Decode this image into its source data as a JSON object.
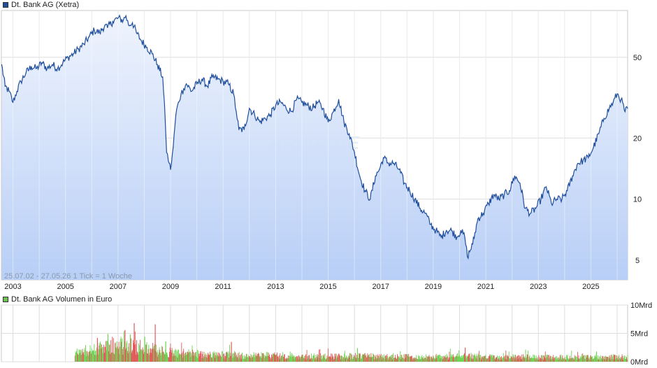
{
  "chart_data": [
    {
      "type": "line",
      "legend": "Dt. Bank AG (Xetra)",
      "yscale": "log",
      "ylim": [
        4,
        85
      ],
      "yticks": [
        {
          "value": 5,
          "label": "5"
        },
        {
          "value": 10,
          "label": "10"
        },
        {
          "value": 20,
          "label": "20"
        },
        {
          "value": 50,
          "label": "50"
        }
      ],
      "xlim": [
        2002.56,
        2026.4
      ],
      "xticks": [
        "2003",
        "2005",
        "2007",
        "2009",
        "2011",
        "2013",
        "2015",
        "2017",
        "2019",
        "2021",
        "2023",
        "2025"
      ],
      "caption": "25.07.02 - 27.05.26    1 Tick = 1 Woche",
      "watermark": "ARIVA.DE",
      "grid": true,
      "line_color": "#1f4e9c",
      "fill_top_color": "#eef3fd",
      "fill_bottom_color": "#b4ccf6",
      "series": [
        {
          "name": "Dt. Bank AG (Xetra)",
          "x": [
            2002.57,
            2002.7,
            2002.85,
            2003.0,
            2003.15,
            2003.3,
            2003.5,
            2003.7,
            2003.9,
            2004.1,
            2004.3,
            2004.5,
            2004.7,
            2004.9,
            2005.1,
            2005.3,
            2005.5,
            2005.7,
            2005.9,
            2006.1,
            2006.3,
            2006.5,
            2006.6,
            2006.8,
            2007.0,
            2007.2,
            2007.3,
            2007.4,
            2007.55,
            2007.7,
            2007.9,
            2008.1,
            2008.3,
            2008.5,
            2008.7,
            2008.8,
            2008.85,
            2008.95,
            2009.0,
            2009.1,
            2009.2,
            2009.3,
            2009.4,
            2009.5,
            2009.6,
            2009.8,
            2010.0,
            2010.2,
            2010.4,
            2010.6,
            2010.8,
            2011.0,
            2011.2,
            2011.4,
            2011.5,
            2011.6,
            2011.8,
            2012.0,
            2012.2,
            2012.4,
            2012.6,
            2012.8,
            2013.0,
            2013.2,
            2013.4,
            2013.6,
            2013.8,
            2014.0,
            2014.2,
            2014.4,
            2014.6,
            2014.8,
            2015.0,
            2015.2,
            2015.4,
            2015.6,
            2015.8,
            2016.0,
            2016.2,
            2016.4,
            2016.6,
            2016.8,
            2016.95,
            2017.1,
            2017.3,
            2017.5,
            2017.7,
            2017.9,
            2018.1,
            2018.3,
            2018.5,
            2018.7,
            2018.9,
            2019.1,
            2019.3,
            2019.5,
            2019.7,
            2019.9,
            2020.05,
            2020.2,
            2020.3,
            2020.5,
            2020.7,
            2020.9,
            2021.1,
            2021.3,
            2021.5,
            2021.7,
            2021.9,
            2022.1,
            2022.3,
            2022.5,
            2022.7,
            2022.9,
            2023.1,
            2023.3,
            2023.5,
            2023.7,
            2023.9,
            2024.1,
            2024.3,
            2024.5,
            2024.7,
            2024.9,
            2025.1,
            2025.3,
            2025.5,
            2025.7,
            2025.85,
            2026.0,
            2026.15,
            2026.3,
            2026.4
          ],
          "y": [
            46,
            36,
            34,
            30,
            34,
            38,
            42,
            45,
            44,
            47,
            44,
            46,
            44,
            47,
            50,
            52,
            55,
            58,
            63,
            68,
            66,
            72,
            70,
            75,
            78,
            76,
            80,
            72,
            74,
            66,
            60,
            56,
            52,
            46,
            40,
            24,
            17,
            15,
            14,
            18,
            26,
            30,
            33,
            35,
            37,
            34,
            37,
            39,
            36,
            40,
            39,
            38,
            37,
            33,
            27,
            22,
            22,
            28,
            26,
            24,
            25,
            26,
            29,
            30,
            28,
            27,
            31,
            30,
            29,
            28,
            30,
            28,
            24,
            27,
            31,
            24,
            21,
            17,
            13,
            11,
            10,
            13,
            14,
            16,
            15,
            15,
            14,
            12,
            11,
            10,
            9,
            8.5,
            7.5,
            7,
            6.5,
            7,
            7,
            6.5,
            7,
            6.5,
            5.2,
            6,
            8,
            8.5,
            9.5,
            10.5,
            10,
            10.5,
            11,
            13,
            12,
            9,
            8.5,
            9,
            10,
            11.5,
            9.5,
            10,
            10,
            11,
            13,
            15,
            15.5,
            16,
            18,
            21,
            25,
            28,
            30,
            33,
            31,
            27,
            28
          ]
        }
      ]
    },
    {
      "type": "bar",
      "legend": "Dt. Bank AG Volumen in Euro",
      "ylim": [
        0,
        10
      ],
      "yticks": [
        {
          "value": 0,
          "label": "0Mrd"
        },
        {
          "value": 5,
          "label": "5Mrd"
        },
        {
          "value": 10,
          "label": "10Mrd"
        }
      ],
      "colors": {
        "up": "#6dd452",
        "down": "#e05a5a"
      },
      "start_x": 2005.35,
      "end_x": 2026.4,
      "envelope": {
        "x": [
          2005.35,
          2005.8,
          2006.3,
          2006.8,
          2007.3,
          2007.8,
          2008.3,
          2008.8,
          2009.3,
          2009.8,
          2010.3,
          2011.3,
          2012.3,
          2013.3,
          2014.3,
          2015.3,
          2016.3,
          2017.3,
          2018.3,
          2019.3,
          2020.3,
          2021.3,
          2022.3,
          2023.3,
          2024.3,
          2025.3,
          2026.0,
          2026.4
        ],
        "y": [
          1.8,
          2.5,
          2.9,
          3.4,
          3.6,
          3.2,
          2.7,
          2.2,
          1.9,
          1.8,
          1.6,
          1.5,
          1.4,
          1.3,
          1.2,
          1.2,
          1.3,
          1.1,
          1.1,
          1.1,
          1.3,
          1.0,
          1.1,
          1.0,
          1.0,
          1.0,
          1.1,
          1.0
        ]
      },
      "peaks": [
        {
          "x": 2006.2,
          "y": 4.2
        },
        {
          "x": 2006.6,
          "y": 4.9
        },
        {
          "x": 2007.25,
          "y": 5.6
        },
        {
          "x": 2007.45,
          "y": 4.8
        },
        {
          "x": 2007.6,
          "y": 6.8
        },
        {
          "x": 2008.0,
          "y": 4.4
        },
        {
          "x": 2008.4,
          "y": 6.6
        },
        {
          "x": 2008.8,
          "y": 3.6
        },
        {
          "x": 2011.3,
          "y": 3.5
        },
        {
          "x": 2016.1,
          "y": 2.4
        },
        {
          "x": 2020.2,
          "y": 2.5
        },
        {
          "x": 2025.2,
          "y": 1.8
        }
      ]
    }
  ]
}
